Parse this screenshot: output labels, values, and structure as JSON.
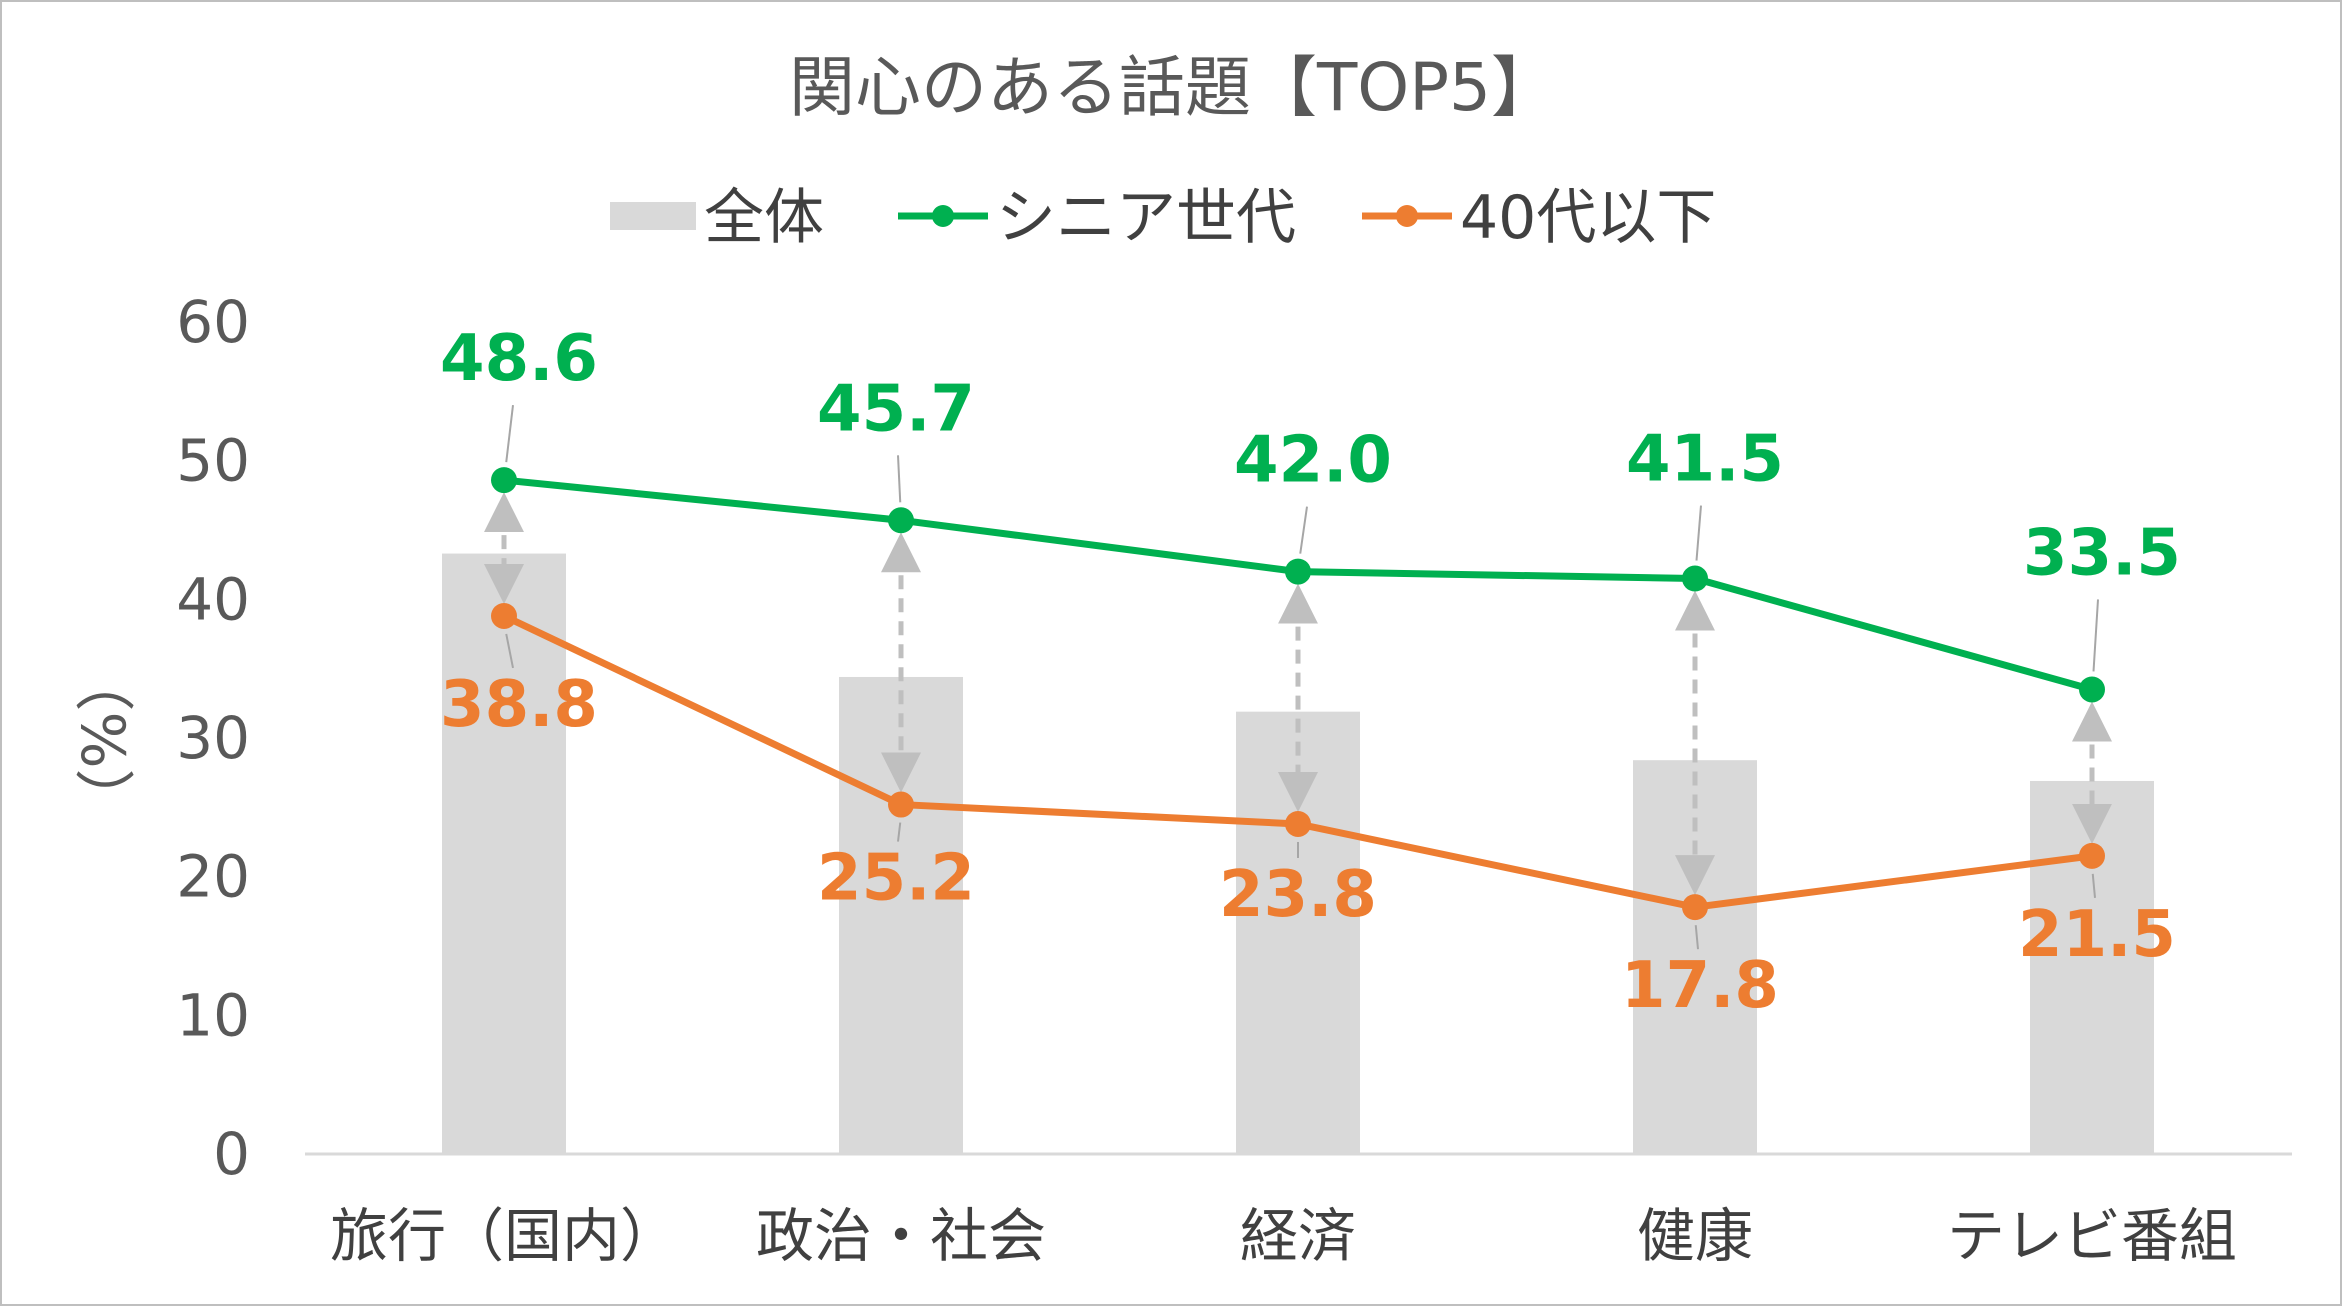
{
  "chart_data": {
    "type": "bar",
    "title": "関心のある話題【TOP5】",
    "ylabel": "（%）",
    "xlabel": "",
    "ylim": [
      0,
      60
    ],
    "yticks": [
      "0",
      "10",
      "20",
      "30",
      "40",
      "50",
      "60"
    ],
    "categories": [
      "旅行（国内）",
      "政治・社会",
      "経済",
      "健康",
      "テレビ番組"
    ],
    "legend_position": "top",
    "series": [
      {
        "name": "全体",
        "type": "bar",
        "color": "#d9d9d9",
        "values": [
          43.3,
          34.4,
          31.9,
          28.4,
          26.9
        ]
      },
      {
        "name": "シニア世代",
        "type": "line",
        "color": "#00b050",
        "values": [
          48.6,
          45.7,
          42.0,
          41.5,
          33.5
        ],
        "labels": [
          "48.6",
          "45.7",
          "42.0",
          "41.5",
          "33.5"
        ]
      },
      {
        "name": "40代以下",
        "type": "line",
        "color": "#ed7d31",
        "values": [
          38.8,
          25.2,
          23.8,
          17.8,
          21.5
        ],
        "labels": [
          "38.8",
          "25.2",
          "23.8",
          "17.8",
          "21.5"
        ]
      }
    ],
    "gap_arrow_color": "#bfbfbf"
  }
}
